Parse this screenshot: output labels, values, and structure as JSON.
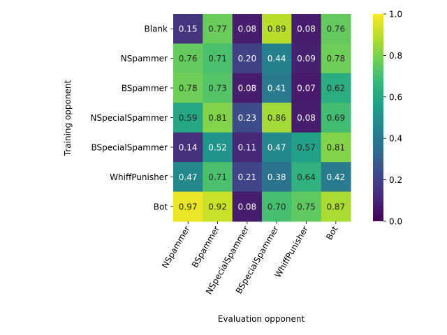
{
  "chart_data": {
    "type": "heatmap",
    "xlabel": "Evaluation opponent",
    "ylabel": "Training opponent",
    "x_categories": [
      "NSpammer",
      "BSpammer",
      "NSpecialSpammer",
      "BSpecialSpammer",
      "WhiffPunisher",
      "Bot"
    ],
    "y_categories": [
      "Blank",
      "NSpammer",
      "BSpammer",
      "NSpecialSpammer",
      "BSpecialSpammer",
      "WhiffPunisher",
      "Bot"
    ],
    "values": [
      [
        0.15,
        0.77,
        0.08,
        0.89,
        0.08,
        0.76
      ],
      [
        0.76,
        0.71,
        0.2,
        0.44,
        0.09,
        0.78
      ],
      [
        0.78,
        0.73,
        0.08,
        0.41,
        0.07,
        0.62
      ],
      [
        0.59,
        0.81,
        0.23,
        0.86,
        0.08,
        0.69
      ],
      [
        0.14,
        0.52,
        0.11,
        0.47,
        0.57,
        0.81
      ],
      [
        0.47,
        0.71,
        0.21,
        0.38,
        0.64,
        0.42
      ],
      [
        0.97,
        0.92,
        0.08,
        0.7,
        0.75,
        0.87
      ]
    ],
    "value_format": "0.00",
    "colormap": "viridis",
    "colorbar": {
      "range": [
        0.0,
        1.0
      ],
      "tick_values": [
        0.0,
        0.2,
        0.4,
        0.6,
        0.8,
        1.0
      ],
      "tick_labels": [
        "0.0",
        "0.2",
        "0.4",
        "0.6",
        "0.8",
        "1.0"
      ]
    },
    "x_tick_rotation_deg": -60,
    "grid": false
  }
}
